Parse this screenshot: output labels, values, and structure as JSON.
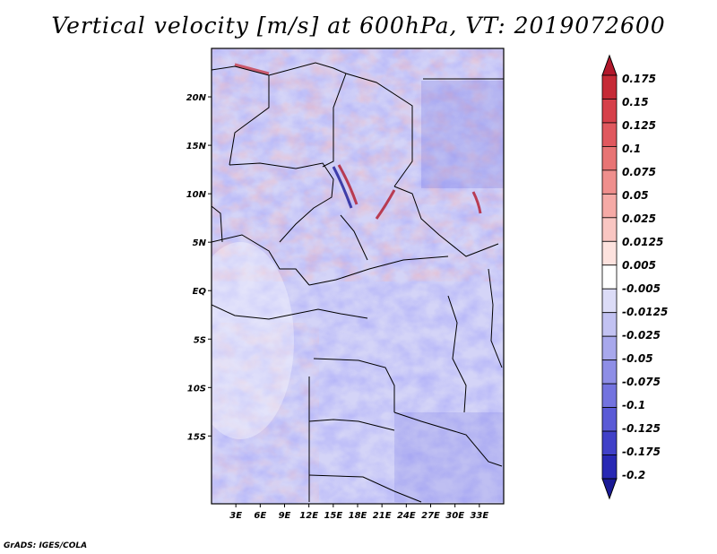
{
  "title": "Vertical velocity [m/s] at 600hPa, VT: 2019072600",
  "credit": "GrADS: IGES/COLA",
  "map": {
    "lon_range": [
      0,
      36
    ],
    "lat_range": [
      -22,
      25
    ],
    "lat_ticks": [
      {
        "value": 20,
        "label": "20N"
      },
      {
        "value": 15,
        "label": "15N"
      },
      {
        "value": 10,
        "label": "10N"
      },
      {
        "value": 5,
        "label": "5N"
      },
      {
        "value": 0,
        "label": "EQ"
      },
      {
        "value": -5,
        "label": "5S"
      },
      {
        "value": -10,
        "label": "10S"
      },
      {
        "value": -15,
        "label": "15S"
      }
    ],
    "lon_ticks": [
      {
        "value": 3,
        "label": "3E"
      },
      {
        "value": 6,
        "label": "6E"
      },
      {
        "value": 9,
        "label": "9E"
      },
      {
        "value": 12,
        "label": "12E"
      },
      {
        "value": 15,
        "label": "15E"
      },
      {
        "value": 18,
        "label": "18E"
      },
      {
        "value": 21,
        "label": "21E"
      },
      {
        "value": 24,
        "label": "24E"
      },
      {
        "value": 27,
        "label": "27E"
      },
      {
        "value": 30,
        "label": "30E"
      },
      {
        "value": 33,
        "label": "33E"
      }
    ]
  },
  "colorbar": {
    "levels": [
      "0.175",
      "0.15",
      "0.125",
      "0.1",
      "0.075",
      "0.05",
      "0.025",
      "0.0125",
      "0.005",
      "-0.005",
      "-0.0125",
      "-0.025",
      "-0.05",
      "-0.075",
      "-0.1",
      "-0.125",
      "-0.175",
      "-0.2"
    ],
    "colors": [
      "#b2182b",
      "#c62a36",
      "#d6404a",
      "#e0585e",
      "#e87474",
      "#ef8f8d",
      "#f5aaa6",
      "#f9c6c2",
      "#fde2de",
      "#ffffff",
      "#dcdcf7",
      "#c2c2f2",
      "#a8a8ec",
      "#8e8ee6",
      "#7373df",
      "#5a5ad6",
      "#4040c8",
      "#2828b4",
      "#1a1a96"
    ]
  }
}
